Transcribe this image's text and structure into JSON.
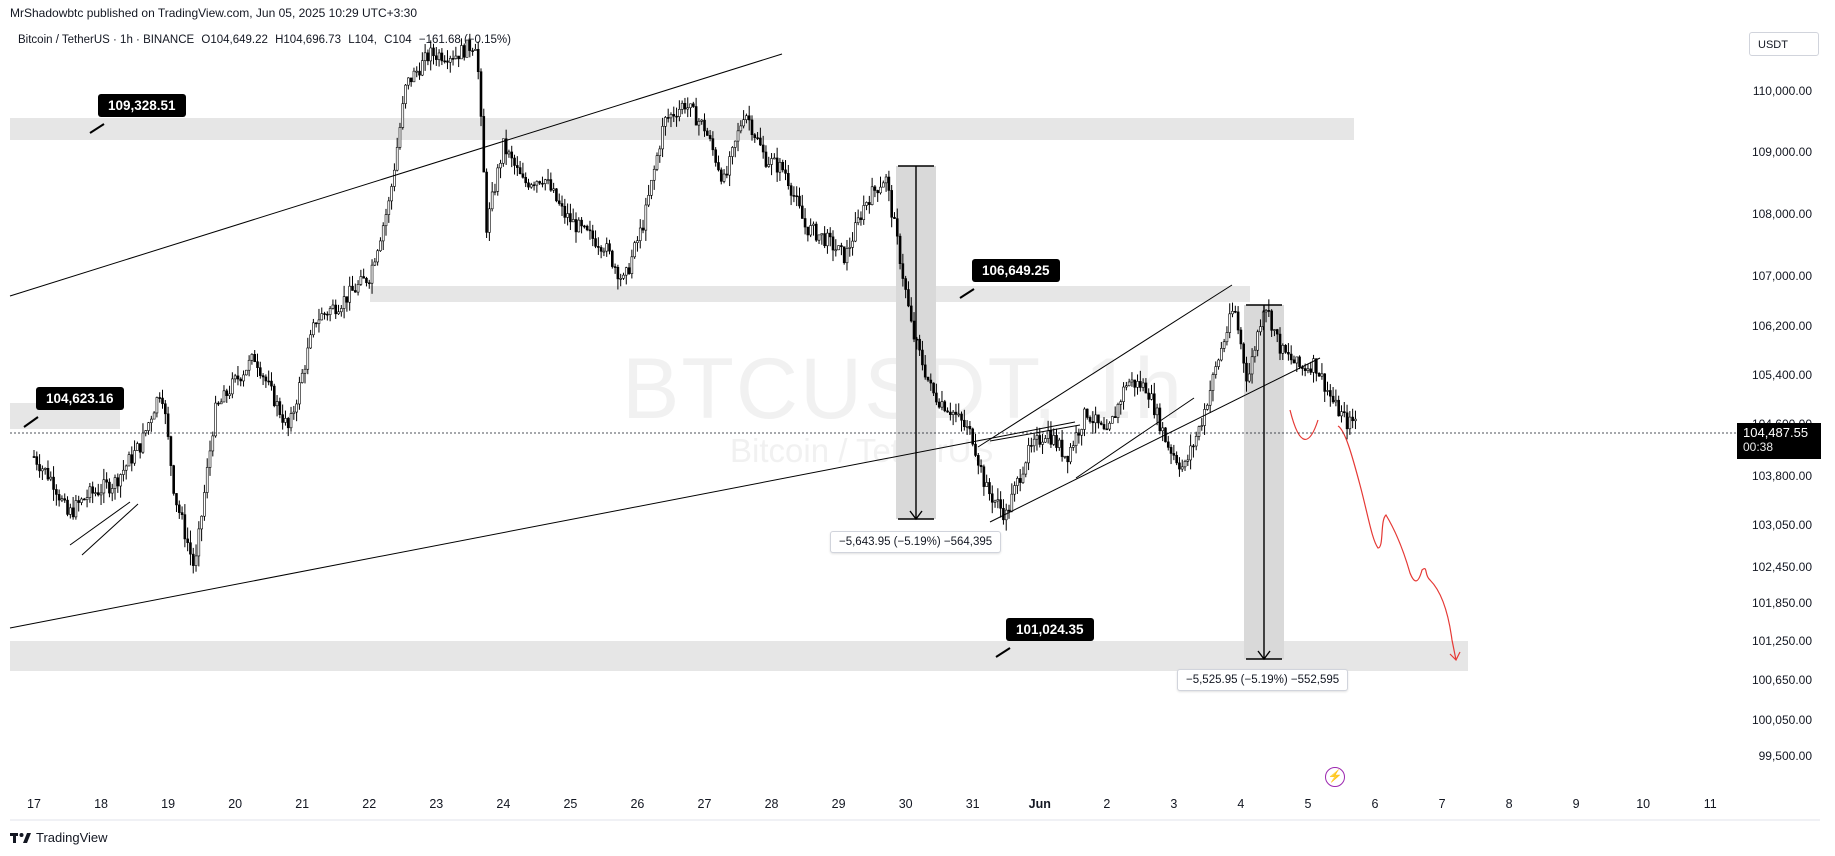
{
  "header": {
    "published_by": "MrShadowbtc published on TradingView.com, Jun 05, 2025 10:29 UTC+3:30"
  },
  "legend": {
    "symbol": "Bitcoin / TetherUS · 1h · BINANCE",
    "open": "O104,649.22",
    "high": "H104,696.73",
    "low": "L104,",
    "close": "C104",
    "change": "−161.68 (−0.15%)"
  },
  "watermark": {
    "ticker": "BTCUSDT, 1h",
    "name": "Bitcoin / TetherUS"
  },
  "price_scale": {
    "unit": "USDT",
    "ticks": [
      "110,000.00",
      "109,000.00",
      "108,000.00",
      "107,000.00",
      "106,200.00",
      "105,400.00",
      "104,600.00",
      "103,800.00",
      "103,050.00",
      "102,450.00",
      "101,850.00",
      "101,250.00",
      "100,650.00",
      "100,050.00",
      "99,500.00"
    ],
    "current_price": "104,487.55",
    "countdown": "00:38"
  },
  "time_scale": {
    "ticks": [
      "17",
      "18",
      "19",
      "20",
      "21",
      "22",
      "23",
      "24",
      "25",
      "26",
      "27",
      "28",
      "29",
      "30",
      "31",
      "Jun",
      "2",
      "3",
      "4",
      "5",
      "6",
      "7",
      "8",
      "9",
      "10",
      "11"
    ]
  },
  "annotations": {
    "callout_1": "109,328.51",
    "callout_2": "104,623.16",
    "callout_3": "106,649.25",
    "callout_4": "101,024.35",
    "measure_1": "−5,643.95 (−5.19%) −564,395",
    "measure_2": "−5,525.95 (−5.19%) −552,595"
  },
  "footer": {
    "brand": "TradingView"
  },
  "colors": {
    "candle": "#000000",
    "zone": "#e6e6e6",
    "projection": "#e53935",
    "price_tag": "#000000"
  }
}
